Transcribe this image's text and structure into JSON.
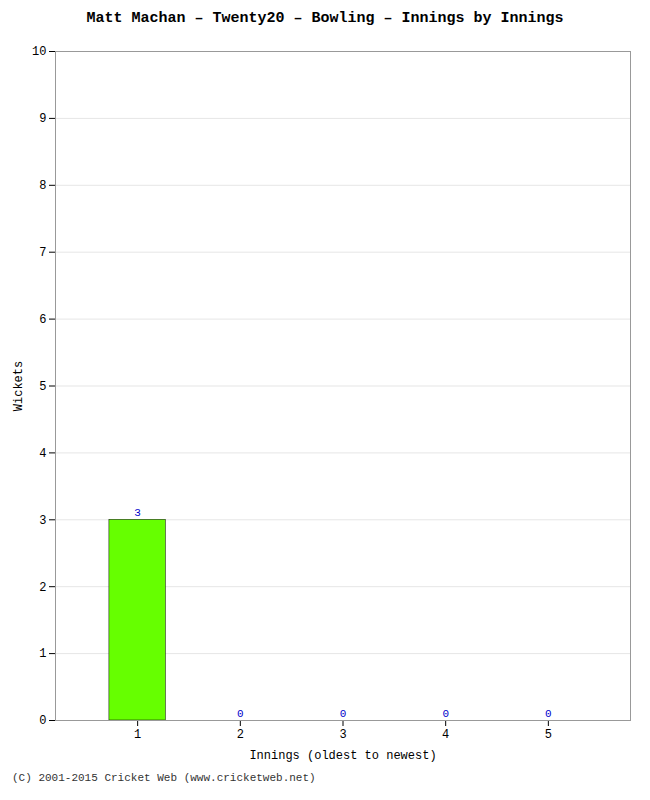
{
  "chart_data": {
    "type": "bar",
    "title": "Matt Machan – Twenty20 – Bowling – Innings by Innings",
    "xlabel": "Innings (oldest to newest)",
    "ylabel": "Wickets",
    "x": [
      1,
      2,
      3,
      4,
      5
    ],
    "values": [
      3,
      0,
      0,
      0,
      0
    ],
    "color": "#66ff00",
    "xlim": [
      0.2,
      5.8
    ],
    "xticks": [
      1,
      2,
      3,
      4,
      5
    ],
    "ylim": [
      0,
      10
    ],
    "yticks": [
      0,
      1,
      2,
      3,
      4,
      5,
      6,
      7,
      8,
      9,
      10
    ],
    "grid": true,
    "data_labels": true,
    "caption": "(C) 2001-2015 Cricket Web (www.cricketweb.net)"
  }
}
